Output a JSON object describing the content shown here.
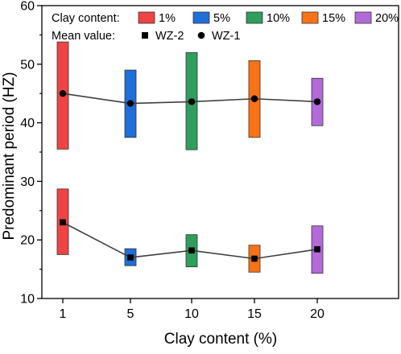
{
  "chart_data": {
    "type": "box",
    "xlabel": "Clay content (%)",
    "ylabel": "Predominant period (HZ)",
    "ylim": [
      10,
      60
    ],
    "yticks": [
      10,
      20,
      30,
      40,
      50,
      60
    ],
    "categories": [
      "1",
      "5",
      "10",
      "15",
      "20"
    ],
    "colors": [
      "#ef4444",
      "#1e6fd9",
      "#2e9e5e",
      "#f97316",
      "#b36ad9"
    ],
    "legend": {
      "content_label": "Clay content:",
      "content_entries": [
        "1%",
        "5%",
        "10%",
        "15%",
        "20%"
      ],
      "mean_label": "Mean value:",
      "mean_entries": [
        {
          "label": "WZ-2",
          "marker": "square"
        },
        {
          "label": "WZ-1",
          "marker": "circle"
        }
      ]
    },
    "series": [
      {
        "name": "WZ-1",
        "marker": "circle",
        "box_low": [
          35.5,
          37.5,
          35.4,
          37.5,
          39.5
        ],
        "box_high": [
          53.8,
          49.0,
          52.0,
          50.6,
          47.6
        ],
        "mean": [
          45.0,
          43.3,
          43.6,
          44.1,
          43.6
        ]
      },
      {
        "name": "WZ-2",
        "marker": "square",
        "box_low": [
          17.5,
          15.6,
          15.4,
          14.5,
          14.3
        ],
        "box_high": [
          28.7,
          18.5,
          20.9,
          19.1,
          22.4
        ],
        "mean": [
          23.0,
          17.0,
          18.2,
          16.8,
          18.4
        ]
      }
    ]
  }
}
